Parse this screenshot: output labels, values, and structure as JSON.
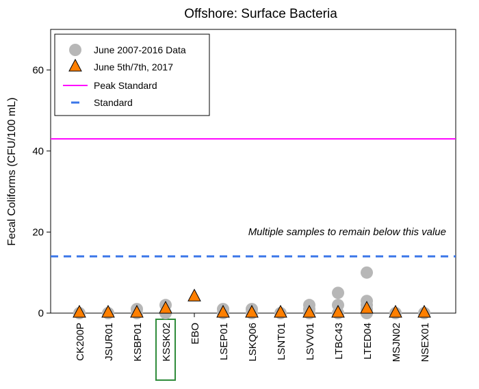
{
  "chart_data": {
    "type": "scatter",
    "title": "Offshore: Surface Bacteria",
    "xlabel": "",
    "ylabel": "Fecal Coliforms (CFU/100 mL)",
    "ylim": [
      0,
      70
    ],
    "yticks": [
      0,
      20,
      40,
      60
    ],
    "categories": [
      "CK200P",
      "JSUR01",
      "KSBP01",
      "KSSK02",
      "EBO",
      "LSEP01",
      "LSKQ06",
      "LSNT01",
      "LSVV01",
      "LTBC43",
      "LTED04",
      "MSJN02",
      "NSEX01"
    ],
    "highlighted_category": "KSSK02",
    "grid": false,
    "legend_position": "top-left",
    "series": [
      {
        "name": "June 2007-2016 Data",
        "marker": "circle",
        "color": "#b7b7b7",
        "points": [
          {
            "x": "CK200P",
            "y": 0
          },
          {
            "x": "JSUR01",
            "y": 0
          },
          {
            "x": "KSBP01",
            "y": 0
          },
          {
            "x": "KSBP01",
            "y": 1
          },
          {
            "x": "KSSK02",
            "y": 0
          },
          {
            "x": "KSSK02",
            "y": 2
          },
          {
            "x": "LSEP01",
            "y": 0
          },
          {
            "x": "LSEP01",
            "y": 1
          },
          {
            "x": "LSKQ06",
            "y": 0
          },
          {
            "x": "LSKQ06",
            "y": 1
          },
          {
            "x": "LSNT01",
            "y": 0
          },
          {
            "x": "LSVV01",
            "y": 0
          },
          {
            "x": "LSVV01",
            "y": 1
          },
          {
            "x": "LSVV01",
            "y": 2
          },
          {
            "x": "LTBC43",
            "y": 0
          },
          {
            "x": "LTBC43",
            "y": 2
          },
          {
            "x": "LTBC43",
            "y": 5
          },
          {
            "x": "LTED04",
            "y": 0
          },
          {
            "x": "LTED04",
            "y": 1
          },
          {
            "x": "LTED04",
            "y": 2
          },
          {
            "x": "LTED04",
            "y": 3
          },
          {
            "x": "LTED04",
            "y": 10
          },
          {
            "x": "MSJN02",
            "y": 0
          },
          {
            "x": "NSEX01",
            "y": 0
          }
        ]
      },
      {
        "name": "June 5th/7th, 2017",
        "marker": "triangle",
        "color": "#ff7f00",
        "points": [
          {
            "x": "CK200P",
            "y": 0
          },
          {
            "x": "JSUR01",
            "y": 0
          },
          {
            "x": "KSBP01",
            "y": 0
          },
          {
            "x": "KSSK02",
            "y": 1
          },
          {
            "x": "EBO",
            "y": 4
          },
          {
            "x": "LSEP01",
            "y": 0
          },
          {
            "x": "LSKQ06",
            "y": 0
          },
          {
            "x": "LSNT01",
            "y": 0
          },
          {
            "x": "LSVV01",
            "y": 0
          },
          {
            "x": "LTBC43",
            "y": 0
          },
          {
            "x": "LTED04",
            "y": 1
          },
          {
            "x": "MSJN02",
            "y": 0
          },
          {
            "x": "NSEX01",
            "y": 0
          }
        ]
      }
    ],
    "reference_lines": [
      {
        "name": "Peak Standard",
        "y": 43,
        "color": "#ff00ff",
        "style": "solid"
      },
      {
        "name": "Standard",
        "y": 14,
        "color": "#3a76e8",
        "style": "dashed"
      }
    ],
    "annotation": "Multiple samples to remain below this value"
  }
}
